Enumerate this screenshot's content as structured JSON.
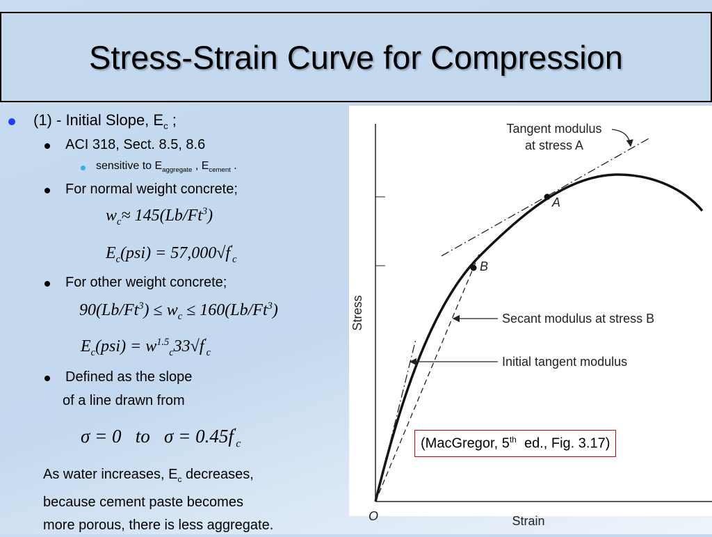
{
  "title": "Stress-Strain Curve for Compression",
  "item1": {
    "text": "(1) - Initial Slope, E",
    "sub": "c",
    "tail": " ;"
  },
  "aci": "ACI 318, Sect. 8.5, 8.6",
  "sensitive": [
    "sensitive to E",
    "aggregate",
    " , E",
    "cement",
    " ."
  ],
  "normal": "For normal weight concrete;",
  "eq1": [
    "w",
    "c",
    "≈ 145(Lb/Ft",
    "3",
    ")"
  ],
  "eq2": [
    "E",
    "c",
    "(psi) = 57,000√",
    "f",
    "'",
    "c"
  ],
  "other": "For other weight concrete;",
  "eq3": [
    "90(Lb/Ft",
    "3",
    ") ≤ w",
    "c",
    " ≤ 160(Lb/Ft",
    "3",
    ")"
  ],
  "eq4": [
    "E",
    "c",
    "(psi) = w",
    "1.5",
    "c",
    "33√",
    "f",
    "'",
    "c"
  ],
  "defined": [
    "Defined as the slope",
    "of a line drawn from"
  ],
  "eq5": [
    "σ = 0   to   σ = 0.45f",
    "'",
    "c"
  ],
  "water": [
    "As water increases, E",
    "c",
    " decreases,",
    "because cement paste becomes",
    "more porous, there is less aggregate."
  ],
  "figure": {
    "tangent": [
      "Tangent modulus",
      "at stress A"
    ],
    "a": "A",
    "b": "B",
    "secant": "Secant modulus at stress B",
    "initial": "Initial tangent modulus",
    "stress": "Stress",
    "strain": "Strain",
    "origin": "O",
    "citation": [
      "(MacGregor, 5",
      "th",
      "  ed., Fig. 3.17)"
    ]
  }
}
